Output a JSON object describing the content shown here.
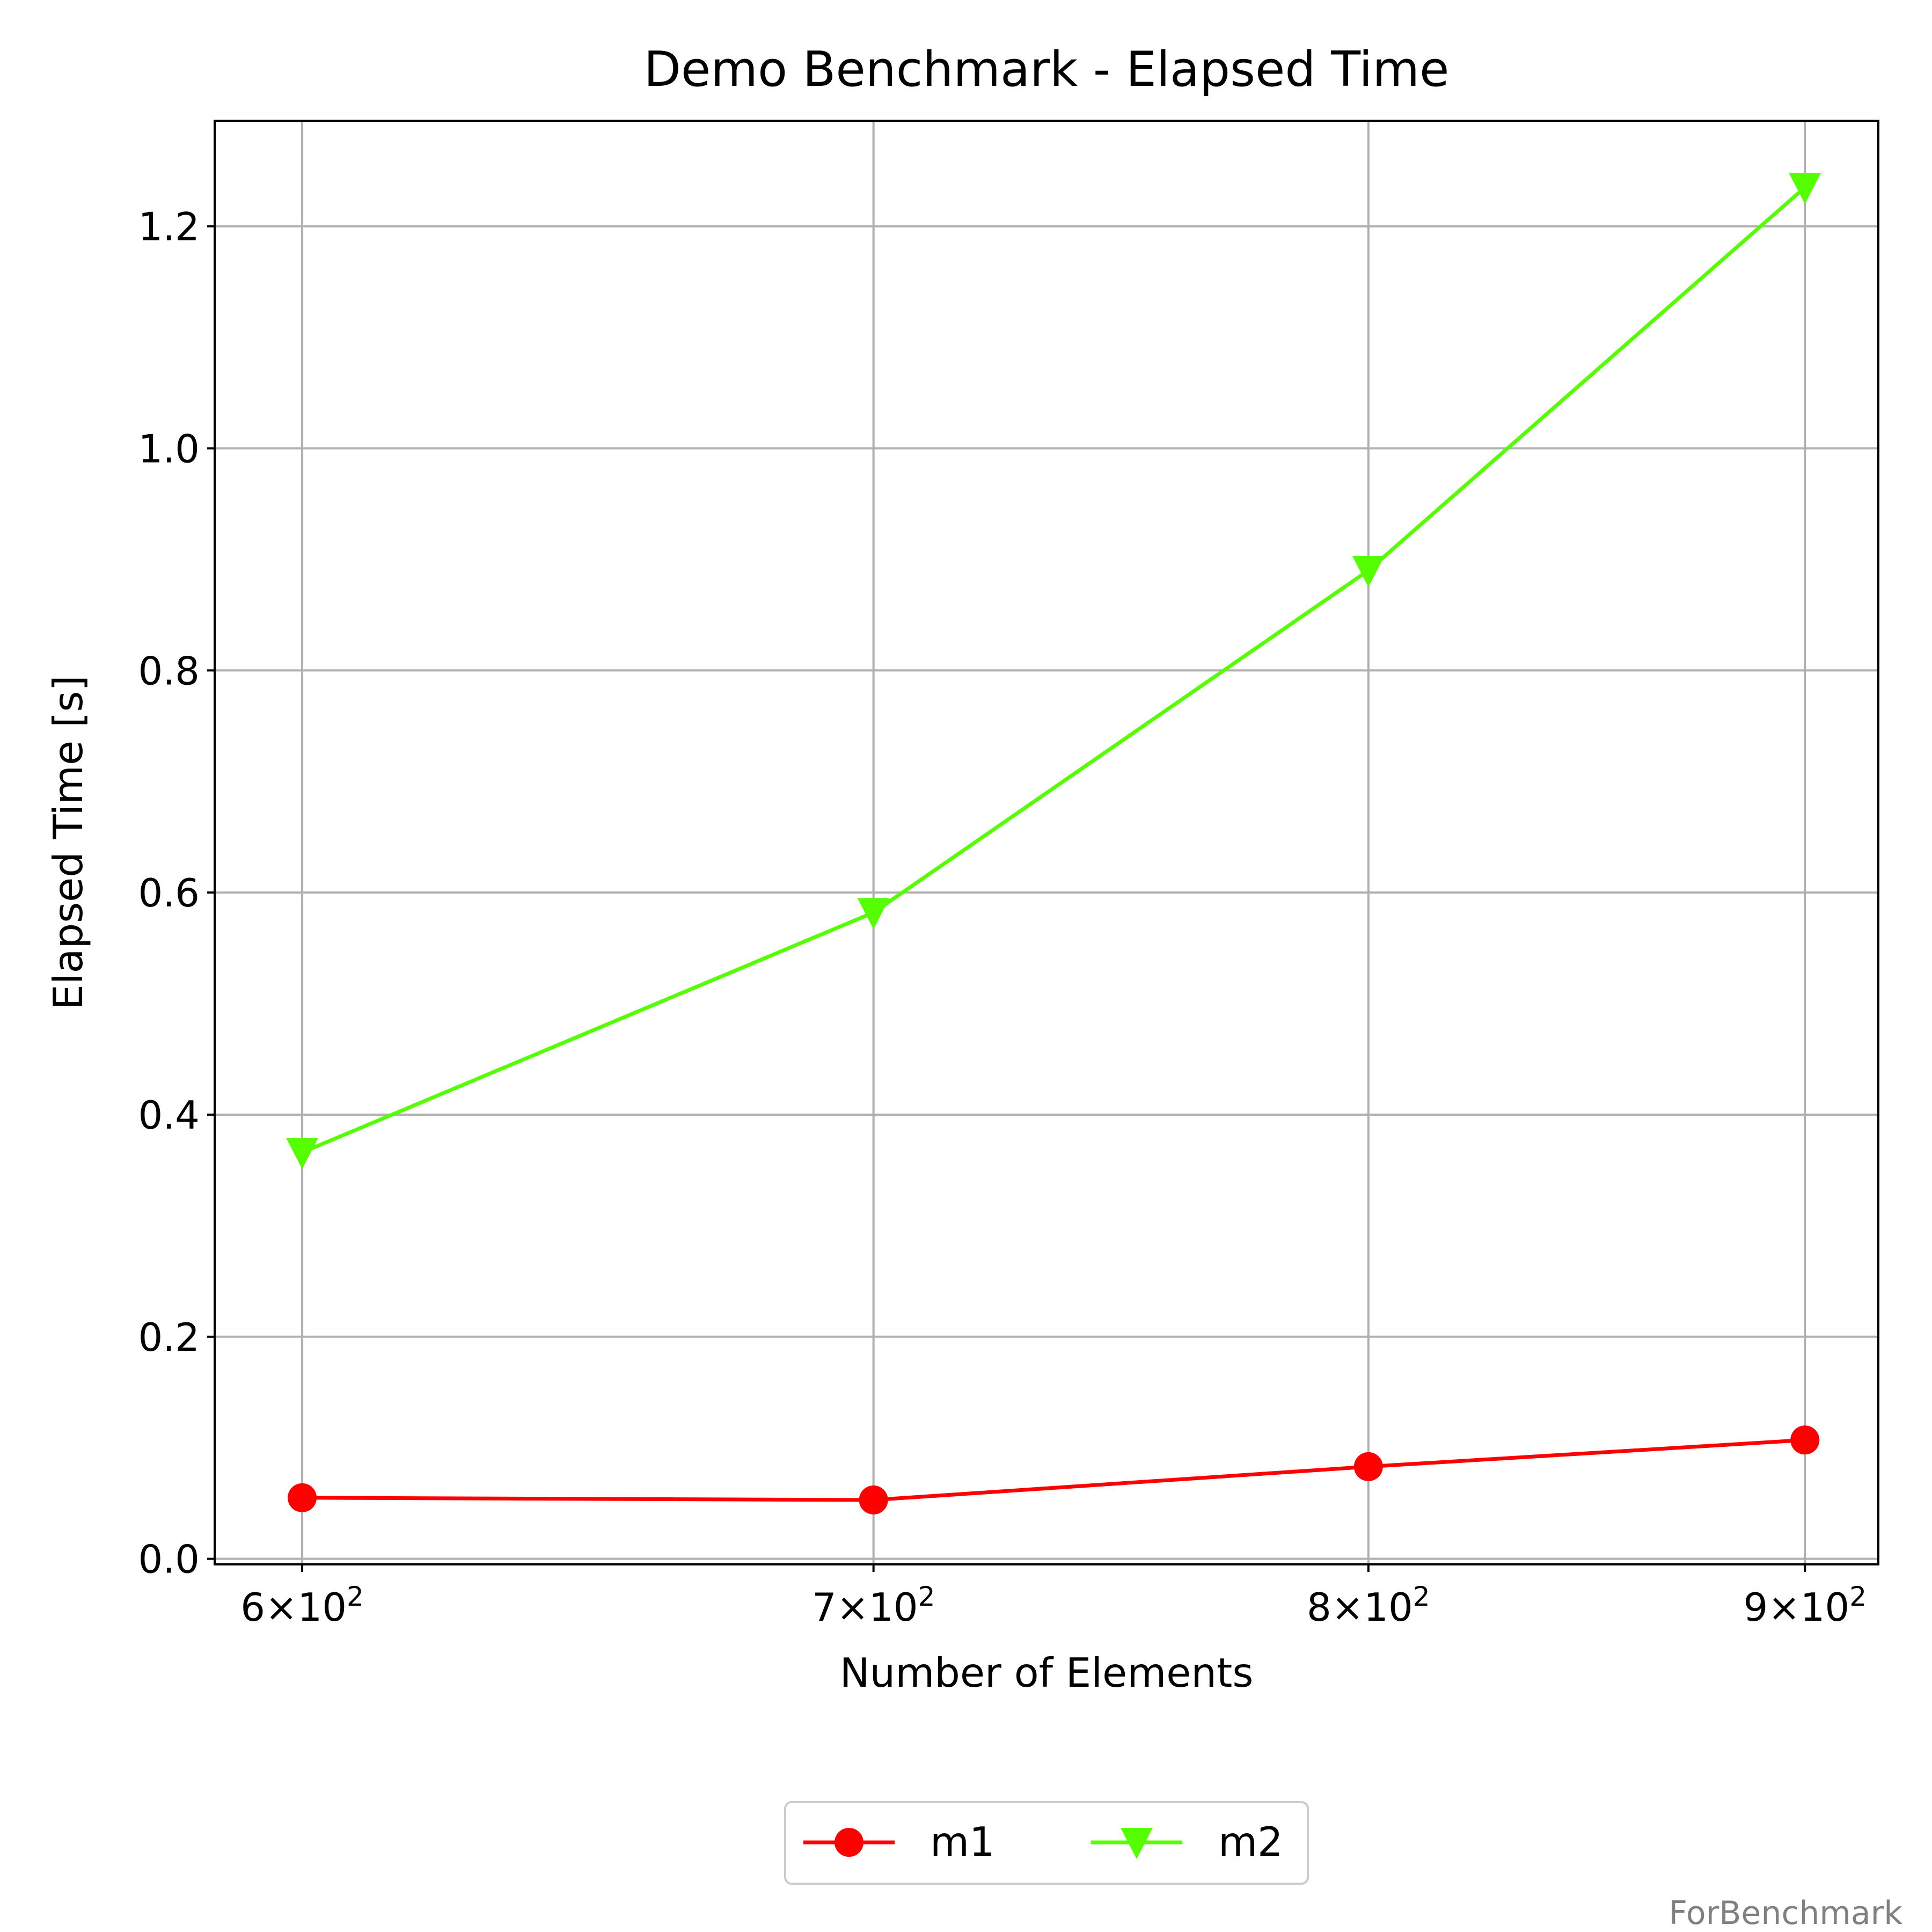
{
  "watermark": "ForBenchmark",
  "chart_data": {
    "type": "line",
    "title": "Demo Benchmark - Elapsed Time",
    "xlabel": "Number of Elements",
    "ylabel": "Elapsed Time [s]",
    "xscale": "log",
    "x": [
      600,
      700,
      800,
      900
    ],
    "xlim": [
      586,
      918
    ],
    "ylim": [
      -0.005,
      1.295
    ],
    "xticks": [
      {
        "value": 600,
        "mantissa": "6",
        "base": "10",
        "exponent": "2"
      },
      {
        "value": 700,
        "mantissa": "7",
        "base": "10",
        "exponent": "2"
      },
      {
        "value": 800,
        "mantissa": "8",
        "base": "10",
        "exponent": "2"
      },
      {
        "value": 900,
        "mantissa": "9",
        "base": "10",
        "exponent": "2"
      }
    ],
    "times_symbol": "×",
    "yticks": [
      {
        "value": 0.0,
        "label": "0.0"
      },
      {
        "value": 0.2,
        "label": "0.2"
      },
      {
        "value": 0.4,
        "label": "0.4"
      },
      {
        "value": 0.6,
        "label": "0.6"
      },
      {
        "value": 0.8,
        "label": "0.8"
      },
      {
        "value": 1.0,
        "label": "1.0"
      },
      {
        "value": 1.2,
        "label": "1.2"
      }
    ],
    "grid": true,
    "legend_position": "bottom-center, below plot",
    "series": [
      {
        "name": "m1",
        "color": "#ff0000",
        "marker": "circle",
        "values": [
          0.055,
          0.053,
          0.083,
          0.107
        ]
      },
      {
        "name": "m2",
        "color": "#55ff00",
        "marker": "triangle-down",
        "values": [
          0.366,
          0.582,
          0.89,
          1.235
        ]
      }
    ]
  }
}
